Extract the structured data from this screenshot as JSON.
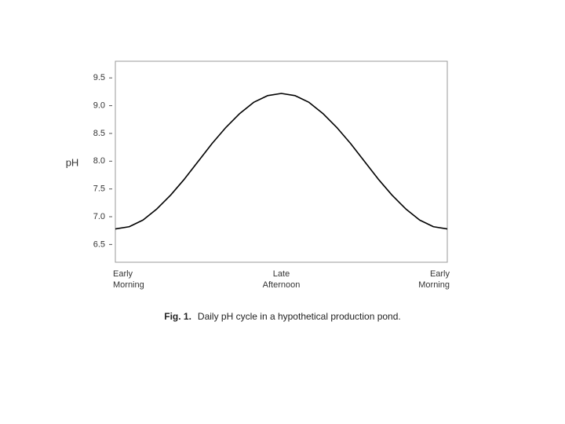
{
  "chart_data": {
    "type": "line",
    "y_label": "pH",
    "caption_label": "Fig. 1.",
    "caption": "Daily pH cycle in a hypothetical production pond.",
    "x": [
      0,
      0.5,
      1,
      1.5,
      2,
      2.5,
      3,
      3.5,
      4,
      4.5,
      5,
      5.5,
      6,
      6.5,
      7,
      7.5,
      8,
      8.5,
      9,
      9.5,
      10,
      10.5,
      11,
      11.5,
      12
    ],
    "series": [
      {
        "color": "#000000",
        "values": [
          6.78,
          6.82,
          6.94,
          7.14,
          7.39,
          7.68,
          8.0,
          8.32,
          8.61,
          8.86,
          9.06,
          9.18,
          9.22,
          9.18,
          9.06,
          8.86,
          8.61,
          8.32,
          8.0,
          7.68,
          7.39,
          7.14,
          6.94,
          6.82,
          6.78
        ]
      }
    ],
    "xlim": [
      0,
      12
    ],
    "xticks": [
      {
        "value": 0,
        "label": "Early Morning"
      },
      {
        "value": 6,
        "label": "Late Afternoon"
      },
      {
        "value": 12,
        "label": "Early Morning"
      }
    ],
    "ylim": [
      6.18,
      9.8
    ],
    "yticks": [
      6.5,
      {
        "value": 7,
        "label": "7.0"
      },
      7.5,
      {
        "value": 8,
        "label": "8.0"
      },
      8.5,
      {
        "value": 9,
        "label": "9.0"
      },
      9.5
    ],
    "grid": false
  }
}
